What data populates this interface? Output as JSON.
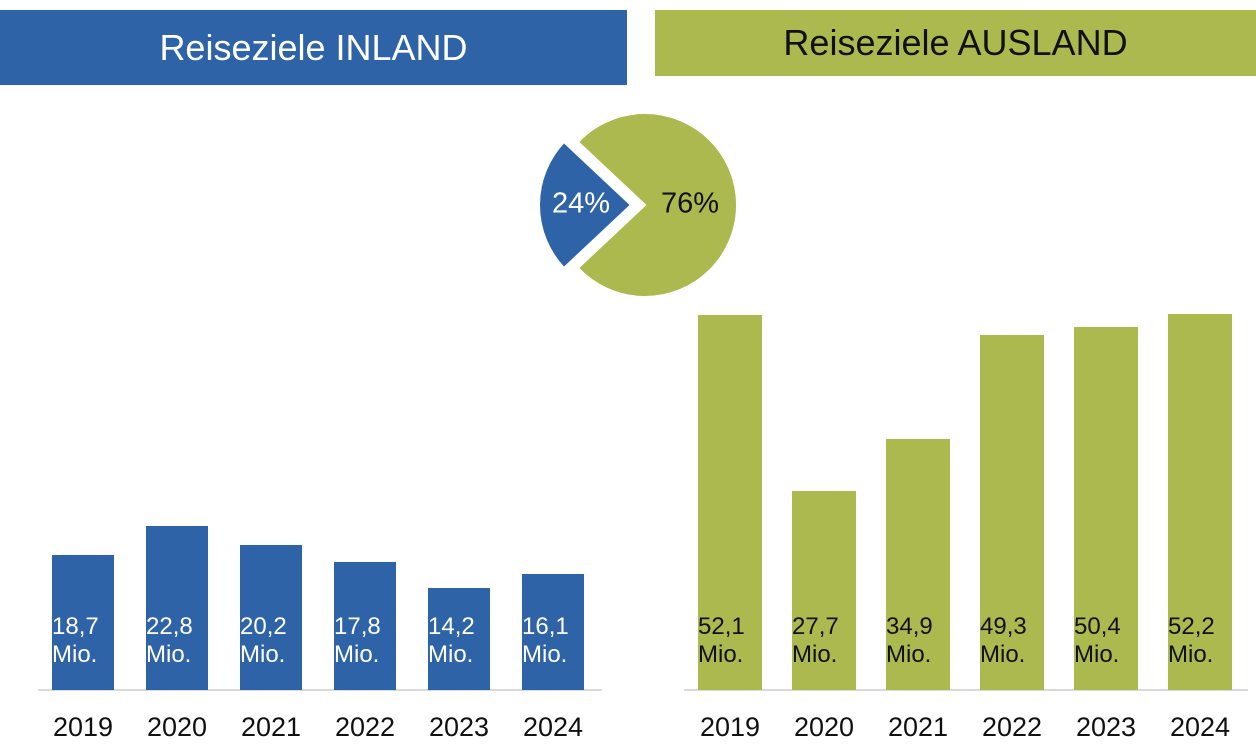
{
  "header": {
    "left": "Reiseziele INLAND",
    "right": "Reiseziele AUSLAND"
  },
  "chart_data": [
    {
      "type": "pie",
      "values": [
        24,
        76
      ],
      "value_labels": [
        "24%",
        "76%"
      ],
      "colors": [
        "#2e63a8",
        "#abb94f"
      ],
      "label_colors": [
        "#ffffff",
        "#111111"
      ]
    },
    {
      "type": "bar",
      "categories": [
        "2019",
        "2020",
        "2021",
        "2022",
        "2023",
        "2024"
      ],
      "values": [
        18.7,
        22.8,
        20.2,
        17.8,
        14.2,
        16.1
      ],
      "value_labels": [
        "18,7 Mio.",
        "22,8 Mio.",
        "20,2 Mio.",
        "17,8 Mio.",
        "14,2 Mio.",
        "16,1 Mio."
      ],
      "color": "#2e63a8",
      "label_color": "#ffffff"
    },
    {
      "type": "bar",
      "categories": [
        "2019",
        "2020",
        "2021",
        "2022",
        "2023",
        "2024"
      ],
      "values": [
        52.1,
        27.7,
        34.9,
        49.3,
        50.4,
        52.2
      ],
      "value_labels": [
        "52,1 Mio.",
        "27,7 Mio.",
        "34,9 Mio.",
        "49,3 Mio.",
        "50,4 Mio.",
        "52,2 Mio."
      ],
      "color": "#abb94f",
      "label_color": "#111111"
    }
  ]
}
